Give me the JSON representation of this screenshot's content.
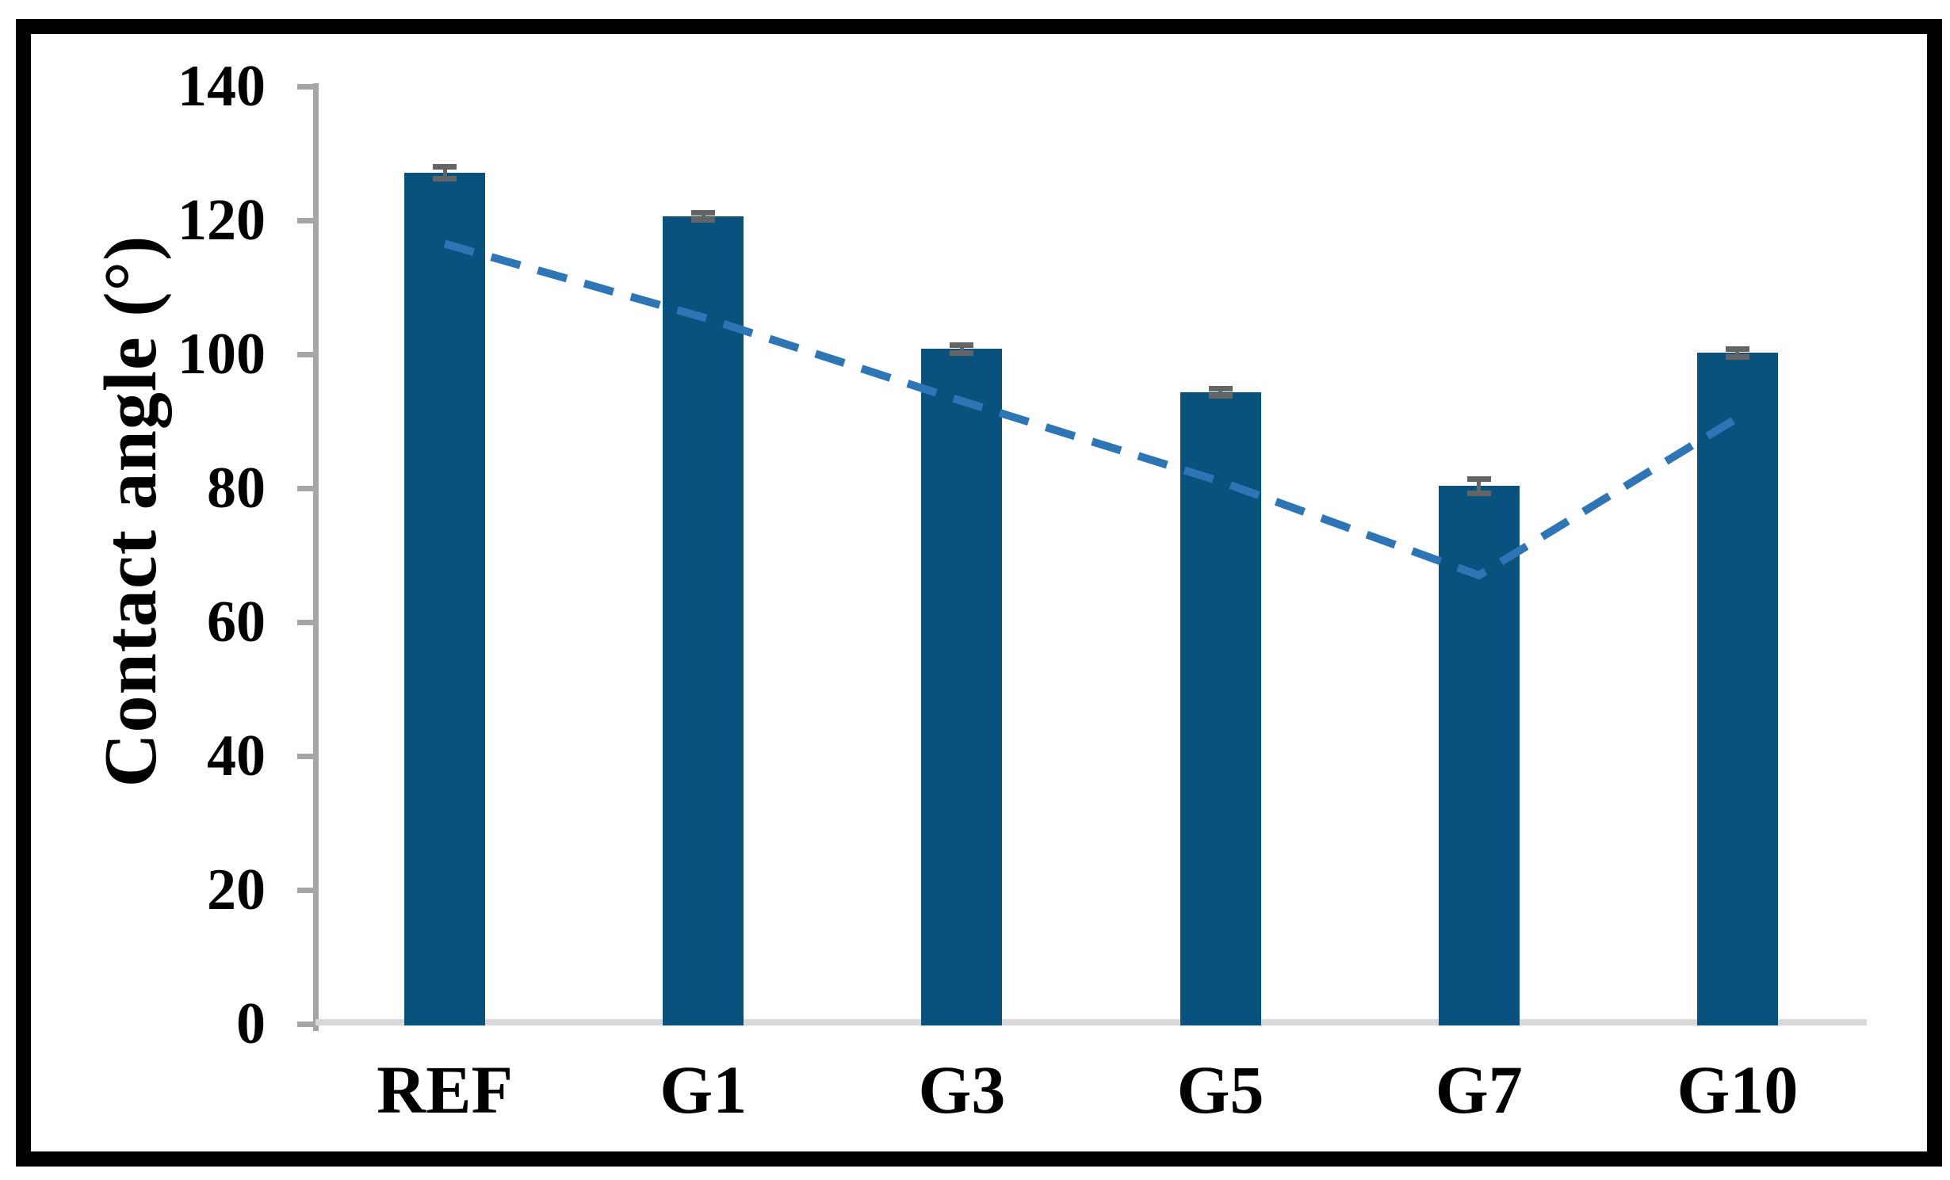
{
  "figure": {
    "background": "#FFFFFF",
    "border_color": "#000000"
  },
  "chart_data": {
    "type": "bar",
    "title": "",
    "xlabel": "",
    "ylabel": "Contact angle (°)",
    "categories": [
      "REF",
      "G1",
      "G3",
      "G5",
      "G7",
      "G10"
    ],
    "series": [
      {
        "name": "Contact angle bars",
        "type": "bar",
        "values": [
          127.1,
          120.6,
          100.8,
          94.3,
          80.3,
          100.2
        ],
        "errors": [
          0.9,
          0.5,
          0.6,
          0.5,
          1.1,
          0.6
        ],
        "color": "#0A527E",
        "error_color": "#646464"
      },
      {
        "name": "Dashed trend line",
        "type": "line",
        "style": "dashed",
        "values": [
          116.5,
          105.5,
          93.0,
          81.0,
          67.0,
          90.5
        ],
        "color": "#2E75B6"
      }
    ],
    "ylim": [
      0,
      140
    ],
    "yticks": [
      0,
      20,
      40,
      60,
      80,
      100,
      120,
      140
    ],
    "grid": false,
    "legend": false,
    "axis_color": "#A6A6A6",
    "baseline_color": "#D9D9D9"
  }
}
